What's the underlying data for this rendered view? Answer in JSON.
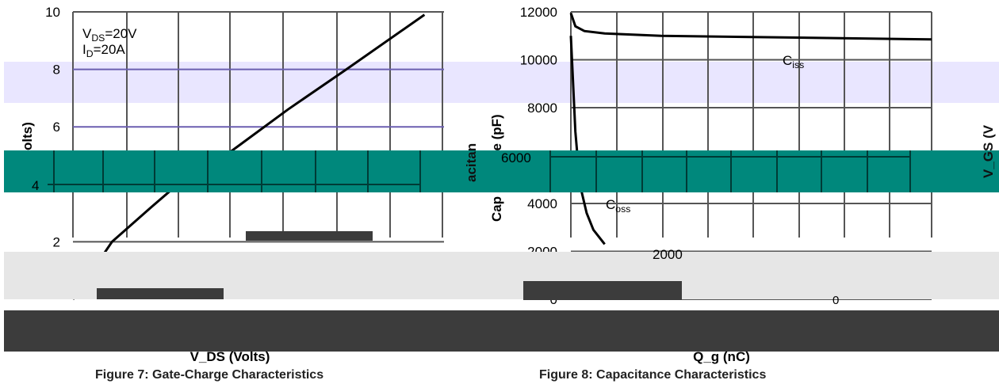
{
  "chart_data": [
    {
      "type": "line",
      "title": "",
      "ylabel": "V_GS (Volts)",
      "xlabel": "V_DS (Volts)",
      "caption": "Figure 7: Gate-Charge Characteristics",
      "ylim": [
        0,
        10
      ],
      "yticks": [
        "10",
        "8",
        "6",
        "4",
        "2"
      ],
      "grid": true,
      "annotations": [
        {
          "text": "V_DS=20V",
          "main": "V",
          "sub": "DS",
          "rest": "=20V"
        },
        {
          "text": "I_D=20A",
          "main": "I",
          "sub": "D",
          "rest": "=20A"
        }
      ],
      "series": [
        {
          "values": [
            {
              "x": 0.0,
              "y": 0.0
            },
            {
              "x": 1.0,
              "y": 2.0
            },
            {
              "x": 1.5,
              "y": 2.6
            },
            {
              "x": 2.0,
              "y": 3.2
            },
            {
              "x": 2.6,
              "y": 3.9
            },
            {
              "x": 3.3,
              "y": 4.4
            },
            {
              "x": 4.3,
              "y": 5.4
            },
            {
              "x": 5.5,
              "y": 6.6
            },
            {
              "x": 7.0,
              "y": 8.0
            },
            {
              "x": 9.0,
              "y": 9.9
            }
          ]
        }
      ]
    },
    {
      "type": "line",
      "title": "",
      "ylabel": "Capacitance (pF)",
      "xlabel": "Q_g (nC)",
      "caption": "Figure 8: Capacitance Characteristics",
      "ylim": [
        0,
        12000
      ],
      "yticks": [
        "12000",
        "10000",
        "8000",
        "6000",
        "4000",
        "2000",
        "0"
      ],
      "grid": true,
      "series": [
        {
          "name": "C_iss",
          "main": "C",
          "sub": "iss",
          "values": [
            {
              "x": 0.0,
              "y": 11950
            },
            {
              "x": 0.2,
              "y": 11400
            },
            {
              "x": 0.6,
              "y": 11200
            },
            {
              "x": 1.5,
              "y": 11100
            },
            {
              "x": 4.0,
              "y": 11000
            },
            {
              "x": 8.0,
              "y": 10950
            },
            {
              "x": 12.0,
              "y": 10900
            },
            {
              "x": 16.0,
              "y": 10850
            }
          ]
        },
        {
          "name": "C_oss",
          "main": "C",
          "sub": "oss",
          "values": [
            {
              "x": 0.0,
              "y": 11000
            },
            {
              "x": 0.2,
              "y": 7000
            },
            {
              "x": 0.4,
              "y": 4800
            },
            {
              "x": 0.7,
              "y": 3600
            },
            {
              "x": 1.0,
              "y": 2900
            },
            {
              "x": 1.5,
              "y": 2300
            }
          ]
        },
        {
          "name": "C_rss",
          "main": "C",
          "sub": "rss",
          "values": [
            {
              "x": 5.8,
              "y": 1900
            },
            {
              "x": 6.0,
              "y": 1200
            },
            {
              "x": 6.5,
              "y": 900
            },
            {
              "x": 7.5,
              "y": 600
            },
            {
              "x": 9.0,
              "y": 400
            },
            {
              "x": 11.0,
              "y": 300
            },
            {
              "x": 14.0,
              "y": 250
            },
            {
              "x": 16.0,
              "y": 230
            }
          ]
        }
      ]
    }
  ],
  "overlay_text": {
    "left_partial_ylabel": "olts)",
    "left_xlabel": "V_DS (Volts)",
    "right_xlabel": "Q_g (nC)",
    "left_caption": "Figure 7: Gate-Charge Characteristics",
    "right_caption": "Figure 8: Capacitance Characteristics",
    "right_partial_ylabel": "V_GS (V",
    "partial_capacitance": "acitan",
    "partial_ce": "ce (pF)",
    "partial_cap": "Cap"
  },
  "colors": {
    "band_lavender": "#e9e6ff",
    "band_teal": "#00887c",
    "gray_band": "#e6e6e6",
    "dark_band": "#3c3c3c",
    "grid_line": "#555555",
    "lavender_grid": "#6b5fb0",
    "curve": "#000000"
  }
}
